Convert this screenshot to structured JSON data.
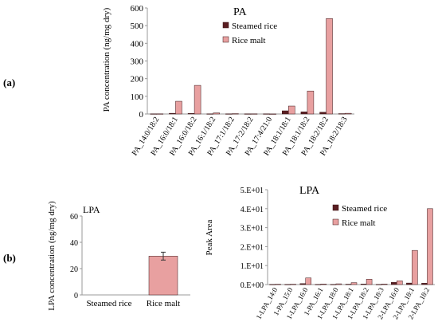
{
  "panels": {
    "a": "(a)",
    "b": "(b)"
  },
  "colors": {
    "steamed": "#5a1e22",
    "malt": "#e8a0a0",
    "axis": "#9a9a9a",
    "bar_edge": "#3a1416"
  },
  "chart_data": [
    {
      "type": "bar",
      "title": "PA",
      "ylabel": "PA concentration (ng/mg dry)",
      "xlabel": "",
      "ylim": [
        0,
        600
      ],
      "yticks": [
        "0",
        "100",
        "200",
        "300",
        "400",
        "500",
        "600"
      ],
      "categories": [
        "PA_14:0/18:2",
        "PA_16:0/18:1",
        "PA_16:0/18:2",
        "PA_16:1/18:2",
        "PA_17:1/18:2",
        "PA_17:2/18:2",
        "PA_17:4/21:0",
        "PA_18:1/18:1",
        "PA_18:1/18:2",
        "PA_18:2/18:2",
        "PA_18:2/18:3"
      ],
      "series": [
        {
          "name": "Steamed rice",
          "values": [
            1,
            4,
            3,
            1,
            1,
            1,
            1,
            18,
            12,
            10,
            2
          ]
        },
        {
          "name": "Rice malt",
          "values": [
            1,
            72,
            162,
            6,
            2,
            1,
            0.5,
            45,
            130,
            540,
            4
          ]
        }
      ],
      "legend": "top-right",
      "grid": false
    },
    {
      "type": "bar",
      "title": "LPA",
      "ylabel": "LPA concentration (ng/mg dry)",
      "xlabel": "",
      "ylim": [
        0,
        60
      ],
      "yticks": [
        "0",
        "20",
        "40",
        "60"
      ],
      "categories": [
        "Steamed rice",
        "Rice malt"
      ],
      "values": [
        0,
        29.5
      ],
      "error": [
        0,
        3
      ],
      "grid": false
    },
    {
      "type": "bar",
      "title": "LPA",
      "ylabel": "Peak Area",
      "xlabel": "",
      "ylim": [
        0,
        50
      ],
      "yticks": [
        "0.E+00",
        "1.E+01",
        "2.E+01",
        "3.E+01",
        "4.E+01",
        "5.E+01"
      ],
      "categories": [
        "1-LPA_14:0",
        "1-PA_15:0",
        "1-LPA_16:0",
        "1-PA_16:1",
        "1-LPA_18:0",
        "1-LPA_18:1",
        "1-LPA_18:2",
        "1-LPA_18:3",
        "2-LPA_16:0",
        "2-LPA_18:1",
        "2-LPA_18:2"
      ],
      "series": [
        {
          "name": "Steamed rice",
          "values": [
            0.1,
            0.1,
            0.5,
            0.1,
            0.1,
            0.2,
            0.3,
            0.1,
            1.2,
            0.8,
            0.7
          ]
        },
        {
          "name": "Rice malt",
          "values": [
            0.2,
            0.2,
            3.5,
            0.3,
            0.4,
            1.0,
            2.8,
            0.3,
            2.0,
            18.0,
            40.0
          ]
        }
      ],
      "legend": "top-right",
      "grid": false
    }
  ]
}
